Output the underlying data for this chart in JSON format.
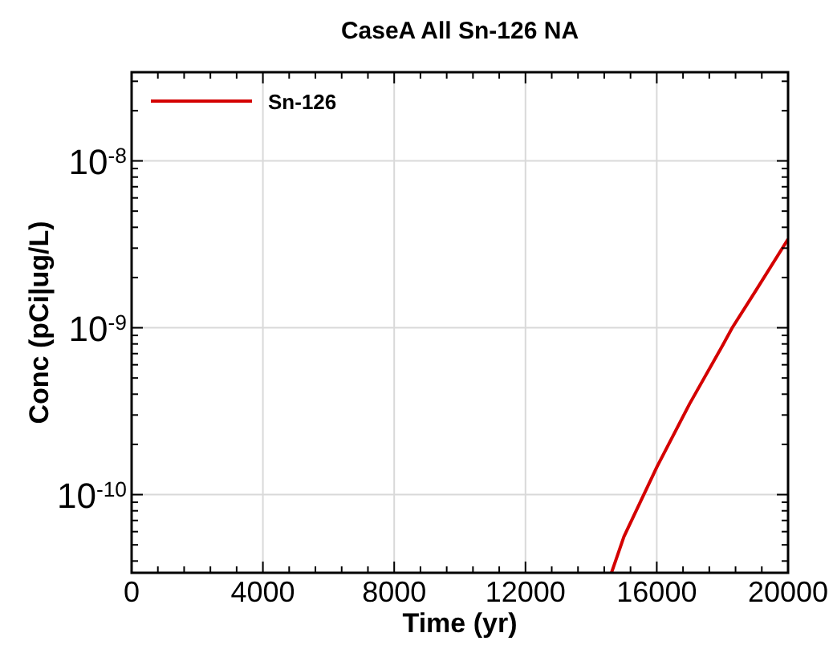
{
  "chart_data": {
    "type": "line",
    "title": "CaseA All Sn-126 NA",
    "xlabel": "Time (yr)",
    "ylabel": "Conc (pCi|ug/L)",
    "x": [
      14620,
      15000,
      16000,
      17000,
      18000,
      18300,
      19000,
      20000
    ],
    "series": [
      {
        "name": "Sn-126",
        "color": "#d40000",
        "values": [
          3.4e-11,
          5.6e-11,
          1.46e-10,
          3.5e-10,
          7.8e-10,
          1e-09,
          1.65e-09,
          3.4e-09
        ]
      }
    ],
    "xlim": [
      0,
      20000
    ],
    "xticks": [
      0,
      4000,
      8000,
      12000,
      16000,
      20000
    ],
    "ylim": [
      3.4e-11,
      3.4e-08
    ],
    "yticks": [
      {
        "value": 1e-10,
        "label": "10$^{-10}$"
      },
      {
        "value": 1e-09,
        "label": "10$^{-9}$"
      },
      {
        "value": 1e-08,
        "label": "10$^{-8}$"
      }
    ],
    "log": "y",
    "grid": true,
    "legend": "top left",
    "marker": "none",
    "line_style": "solid"
  }
}
